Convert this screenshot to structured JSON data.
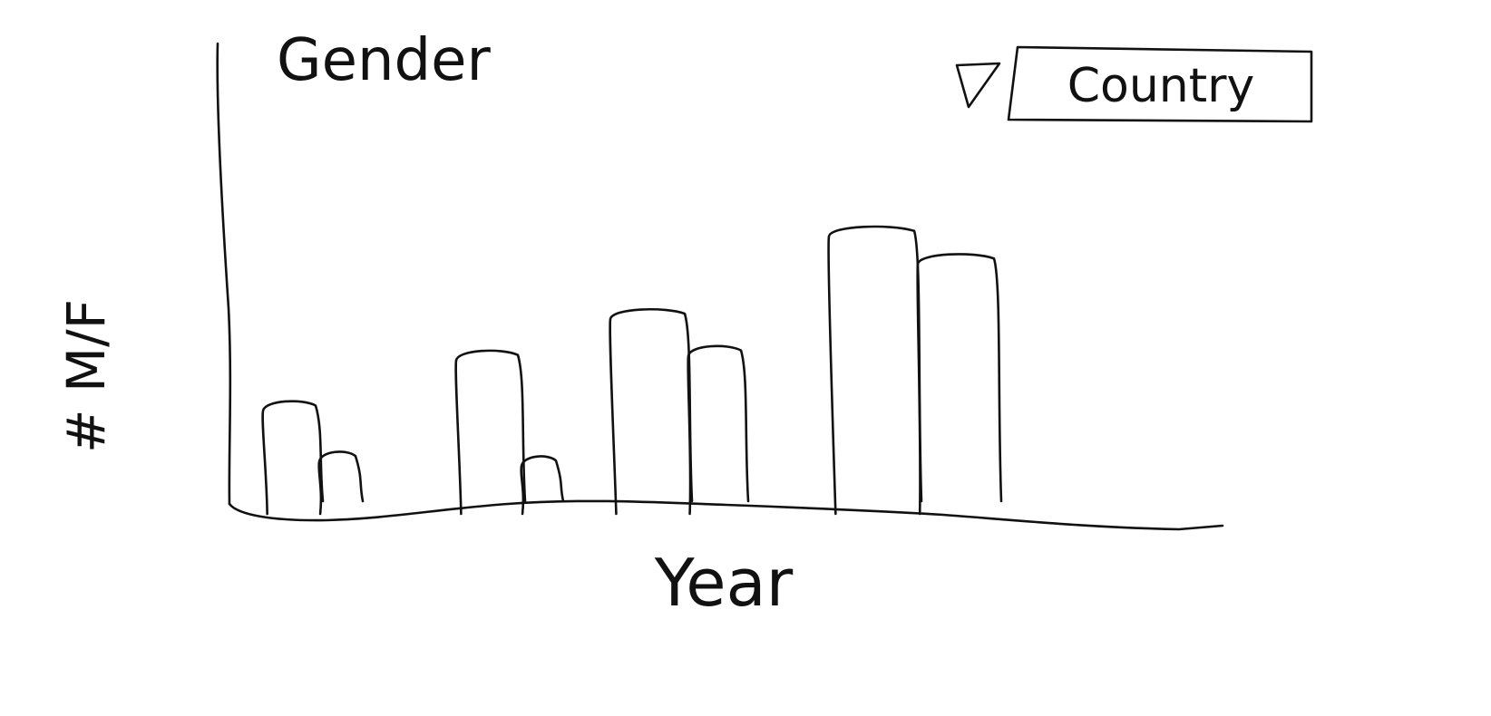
{
  "chart_data": {
    "type": "bar",
    "title": "Gender",
    "xlabel": "Year",
    "ylabel": "# M/F",
    "categories": [
      "",
      "",
      "",
      ""
    ],
    "series": [
      {
        "values": [
          22,
          33,
          42,
          60
        ]
      },
      {
        "values": [
          11,
          10,
          34,
          54
        ]
      }
    ],
    "ylim": [
      0,
      100
    ],
    "grid": false
  },
  "filter": {
    "label": "Country",
    "icon": "dropdown-triangle-icon"
  },
  "colors": {
    "ink": "#111111",
    "background": "#ffffff"
  }
}
